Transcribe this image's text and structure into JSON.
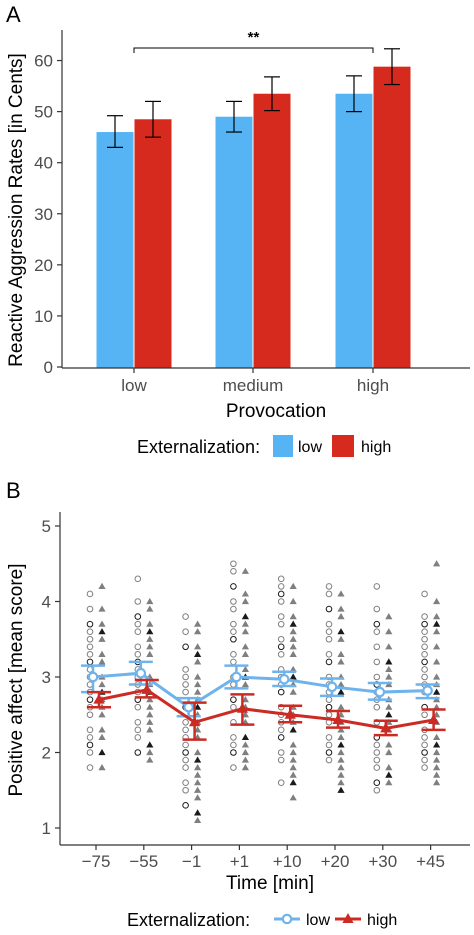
{
  "panel_labels": [
    "A",
    "B"
  ],
  "colors": {
    "low": "#56B4F5",
    "high": "#D62A1E",
    "low_line": "#6FB3EC",
    "high_line": "#CC2B24",
    "axis": "#333333",
    "tick_text": "#4d4d4d",
    "scatter_gray": "#7f7f7f",
    "scatter_black": "#1a1a1a"
  },
  "chart_data": [
    {
      "type": "bar",
      "panel": "A",
      "title": "",
      "xlabel": "Provocation",
      "ylabel": "Reactive Aggression Rates [in Cents]",
      "categories": [
        "low",
        "medium",
        "high"
      ],
      "ylim": [
        0,
        65
      ],
      "yticks": [
        0,
        10,
        20,
        30,
        40,
        50,
        60
      ],
      "grid": false,
      "legend": {
        "title": "Externalization:",
        "position": "bottom"
      },
      "series": [
        {
          "name": "low",
          "values": [
            46,
            49,
            53.5
          ],
          "error_low": [
            43,
            46,
            50
          ],
          "error_high": [
            49.2,
            52,
            57
          ]
        },
        {
          "name": "high",
          "values": [
            48.5,
            53.5,
            58.8
          ],
          "error_low": [
            45,
            50.2,
            55.3
          ],
          "error_high": [
            52,
            56.8,
            62.3
          ]
        }
      ],
      "annotations": [
        {
          "text": "**",
          "from_category": "low",
          "to_category": "high"
        }
      ]
    },
    {
      "type": "line",
      "panel": "B",
      "title": "",
      "xlabel": "Time [min]",
      "ylabel": "Positive affect [mean score]",
      "categories": [
        "−75",
        "−55",
        "−1",
        "+1",
        "+10",
        "+20",
        "+30",
        "+45"
      ],
      "ylim": [
        1,
        5
      ],
      "yticks": [
        1,
        2,
        3,
        4,
        5
      ],
      "grid": false,
      "legend": {
        "title": "Externalization:",
        "position": "bottom"
      },
      "series": [
        {
          "name": "low",
          "marker": "circle",
          "values": [
            3.0,
            3.05,
            2.6,
            3.0,
            2.97,
            2.87,
            2.8,
            2.82
          ],
          "error_low": [
            2.8,
            2.9,
            2.48,
            2.85,
            2.88,
            2.75,
            2.7,
            2.72
          ],
          "error_high": [
            3.15,
            3.2,
            2.72,
            3.15,
            3.07,
            2.98,
            2.92,
            2.9
          ]
        },
        {
          "name": "high",
          "marker": "triangle",
          "values": [
            2.7,
            2.83,
            2.4,
            2.58,
            2.5,
            2.43,
            2.32,
            2.43
          ],
          "error_low": [
            2.6,
            2.73,
            2.17,
            2.37,
            2.4,
            2.33,
            2.23,
            2.3
          ],
          "error_high": [
            2.8,
            2.96,
            2.66,
            2.77,
            2.62,
            2.55,
            2.42,
            2.57
          ]
        }
      ],
      "raw_points": {
        "low": [
          [
            4.1,
            3.9,
            3.7,
            3.6,
            3.5,
            3.4,
            3.3,
            3.2,
            3.1,
            3.0,
            2.9,
            2.8,
            2.7,
            2.6,
            2.5,
            2.3,
            2.2,
            2.1,
            2.0,
            1.8
          ],
          [
            4.3,
            4.0,
            3.8,
            3.7,
            3.6,
            3.4,
            3.3,
            3.2,
            3.1,
            3.0,
            2.9,
            2.8,
            2.7,
            2.6,
            2.4,
            2.3,
            2.2,
            2.0
          ],
          [
            3.8,
            3.6,
            3.4,
            3.1,
            3.0,
            2.9,
            2.8,
            2.6,
            2.4,
            2.3,
            2.2,
            2.1,
            2.0,
            1.9,
            1.8,
            1.6,
            1.5,
            1.3
          ],
          [
            4.5,
            4.4,
            4.2,
            4.0,
            3.9,
            3.7,
            3.6,
            3.5,
            3.3,
            3.2,
            3.0,
            2.9,
            2.7,
            2.6,
            2.4,
            2.2,
            2.1,
            2.0,
            1.8
          ],
          [
            4.3,
            4.2,
            4.1,
            4.0,
            3.8,
            3.7,
            3.5,
            3.4,
            3.3,
            3.1,
            3.0,
            2.9,
            2.8,
            2.6,
            2.5,
            2.4,
            2.3,
            2.2,
            2.0,
            1.9,
            1.6
          ],
          [
            4.2,
            4.1,
            3.9,
            3.7,
            3.6,
            3.5,
            3.3,
            3.2,
            3.0,
            2.9,
            2.8,
            2.7,
            2.6,
            2.5,
            2.4,
            2.2,
            2.1,
            2.0,
            1.9
          ],
          [
            4.2,
            3.9,
            3.7,
            3.6,
            3.4,
            3.2,
            3.0,
            2.9,
            2.8,
            2.7,
            2.6,
            2.4,
            2.2,
            2.1,
            2.0,
            1.9,
            1.8,
            1.6,
            1.5
          ],
          [
            4.1,
            3.8,
            3.7,
            3.6,
            3.5,
            3.4,
            3.3,
            3.2,
            3.1,
            3.0,
            2.9,
            2.8,
            2.6,
            2.5,
            2.3,
            2.2,
            2.1,
            2.0,
            1.9,
            1.8
          ]
        ],
        "high": [
          [
            4.2,
            3.9,
            3.7,
            3.6,
            3.5,
            3.3,
            3.2,
            3.0,
            2.9,
            2.8,
            2.7,
            2.6,
            2.5,
            2.3,
            2.2,
            2.0,
            1.8
          ],
          [
            4.0,
            3.9,
            3.7,
            3.6,
            3.5,
            3.4,
            3.3,
            3.0,
            2.9,
            2.8,
            2.7,
            2.6,
            2.5,
            2.4,
            2.3,
            2.1,
            2.0,
            1.9
          ],
          [
            3.7,
            3.6,
            3.4,
            3.3,
            3.2,
            3.0,
            2.9,
            2.8,
            2.7,
            2.6,
            2.5,
            2.4,
            2.3,
            2.2,
            2.0,
            1.9,
            1.8,
            1.7,
            1.6,
            1.5,
            1.4,
            1.2,
            1.1
          ],
          [
            4.4,
            4.1,
            4.0,
            3.8,
            3.7,
            3.6,
            3.4,
            3.3,
            3.1,
            3.0,
            2.9,
            2.7,
            2.6,
            2.5,
            2.4,
            2.2,
            2.1,
            2.0,
            1.9,
            1.8
          ],
          [
            4.2,
            4.0,
            3.8,
            3.7,
            3.6,
            3.5,
            3.4,
            3.3,
            3.1,
            3.0,
            2.9,
            2.8,
            2.6,
            2.5,
            2.4,
            2.3,
            2.1,
            2.0,
            1.9,
            1.8,
            1.7,
            1.6,
            1.4
          ],
          [
            4.1,
            3.9,
            3.8,
            3.6,
            3.5,
            3.3,
            3.2,
            3.0,
            2.9,
            2.8,
            2.6,
            2.5,
            2.4,
            2.3,
            2.2,
            2.1,
            2.0,
            1.9,
            1.8,
            1.7,
            1.6,
            1.5
          ],
          [
            3.8,
            3.6,
            3.4,
            3.2,
            3.1,
            3.0,
            2.9,
            2.7,
            2.6,
            2.5,
            2.4,
            2.3,
            2.1,
            2.0,
            1.8,
            1.7,
            1.6
          ],
          [
            4.5,
            4.0,
            3.8,
            3.7,
            3.6,
            3.4,
            3.2,
            3.0,
            2.9,
            2.8,
            2.7,
            2.6,
            2.5,
            2.4,
            2.2,
            2.1,
            2.0,
            1.9,
            1.8,
            1.7,
            1.6
          ]
        ]
      }
    }
  ]
}
